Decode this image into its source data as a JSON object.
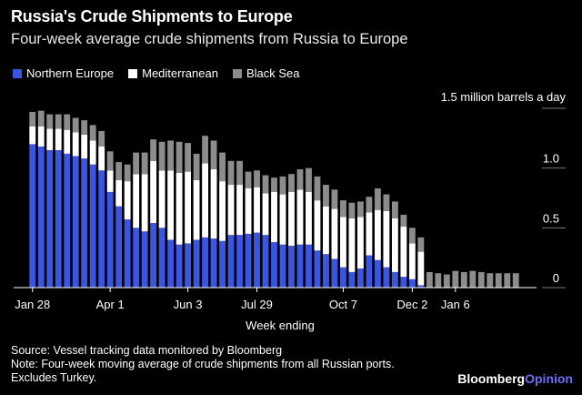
{
  "title": "Russia's Crude Shipments to Europe",
  "subtitle": "Four-week average crude shipments from Russia to Europe",
  "legend": [
    {
      "label": "Northern Europe",
      "color": "#3a55e0"
    },
    {
      "label": "Mediterranean",
      "color": "#ffffff"
    },
    {
      "label": "Black Sea",
      "color": "#8c8c8c"
    }
  ],
  "footer": {
    "source": "Source: Vessel tracking data monitored by Bloomberg",
    "note": "Note: Four-week moving average of crude shipments from all Russian ports.",
    "note2": "Excludes Turkey."
  },
  "brand": {
    "main": "Bloomberg",
    "accent": "Opinion"
  },
  "chart_data": {
    "type": "bar",
    "stacked": true,
    "xlabel": "Week ending",
    "ylabel": "",
    "unit_label": "1.5 million barrels a day",
    "ylim": [
      0,
      1.5
    ],
    "yticks": [
      0,
      0.5,
      1.0,
      1.5
    ],
    "ytick_labels": [
      "0",
      "0.5",
      "1.0",
      ""
    ],
    "xtick_labels": [
      {
        "label": "Jan 28",
        "index": 0
      },
      {
        "label": "Apr 1",
        "index": 9
      },
      {
        "label": "Jun 3",
        "index": 18
      },
      {
        "label": "Jul 29",
        "index": 26
      },
      {
        "label": "Oct 7",
        "index": 36
      },
      {
        "label": "Dec 2",
        "index": 44
      },
      {
        "label": "Jan 6",
        "index": 49
      }
    ],
    "series": [
      {
        "name": "Northern Europe",
        "color": "#3a55e0",
        "values": [
          1.2,
          1.18,
          1.15,
          1.15,
          1.12,
          1.1,
          1.08,
          1.03,
          0.98,
          0.8,
          0.68,
          0.57,
          0.5,
          0.47,
          0.54,
          0.5,
          0.4,
          0.36,
          0.37,
          0.4,
          0.42,
          0.41,
          0.39,
          0.44,
          0.44,
          0.45,
          0.46,
          0.44,
          0.38,
          0.36,
          0.35,
          0.36,
          0.36,
          0.31,
          0.28,
          0.24,
          0.17,
          0.13,
          0.16,
          0.27,
          0.23,
          0.17,
          0.13,
          0.09,
          0.07,
          0.02,
          0.0,
          0.0,
          0.0,
          0.0,
          0.0,
          0.0,
          0.0,
          0.0,
          0.0,
          0.0,
          0.0
        ]
      },
      {
        "name": "Mediterranean",
        "color": "#ffffff",
        "values": [
          0.15,
          0.17,
          0.18,
          0.18,
          0.2,
          0.2,
          0.2,
          0.2,
          0.2,
          0.18,
          0.22,
          0.32,
          0.45,
          0.48,
          0.52,
          0.48,
          0.58,
          0.6,
          0.6,
          0.5,
          0.62,
          0.58,
          0.5,
          0.42,
          0.42,
          0.38,
          0.38,
          0.35,
          0.42,
          0.42,
          0.45,
          0.46,
          0.44,
          0.42,
          0.4,
          0.42,
          0.42,
          0.45,
          0.43,
          0.36,
          0.42,
          0.47,
          0.45,
          0.42,
          0.3,
          0.28,
          0.0,
          0.0,
          0.0,
          0.0,
          0.0,
          0.0,
          0.0,
          0.0,
          0.0,
          0.0,
          0.0
        ]
      },
      {
        "name": "Black Sea",
        "color": "#8c8c8c",
        "values": [
          0.12,
          0.13,
          0.12,
          0.12,
          0.13,
          0.12,
          0.12,
          0.13,
          0.13,
          0.16,
          0.15,
          0.14,
          0.18,
          0.18,
          0.18,
          0.24,
          0.25,
          0.26,
          0.24,
          0.22,
          0.23,
          0.24,
          0.24,
          0.2,
          0.2,
          0.14,
          0.14,
          0.15,
          0.12,
          0.15,
          0.15,
          0.17,
          0.2,
          0.2,
          0.18,
          0.16,
          0.14,
          0.13,
          0.13,
          0.13,
          0.18,
          0.14,
          0.14,
          0.1,
          0.13,
          0.12,
          0.13,
          0.12,
          0.11,
          0.14,
          0.13,
          0.14,
          0.13,
          0.12,
          0.12,
          0.12,
          0.12
        ]
      }
    ],
    "grid": true,
    "legend_position": "top-left"
  }
}
